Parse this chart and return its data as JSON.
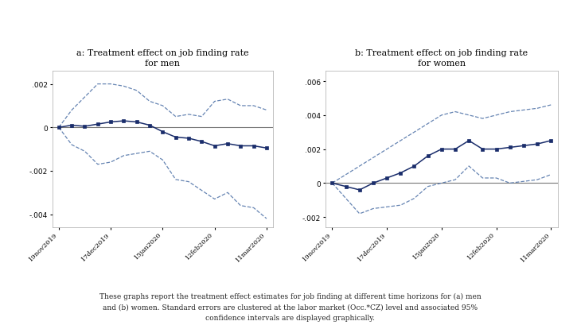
{
  "title_a": "a: Treatment effect on job finding rate\nfor men",
  "title_b": "b: Treatment effect on job finding rate\nfor women",
  "caption": "These graphs report the treatment effect estimates for job finding at different time horizons for (a) men\nand (b) women. Standard errors are clustered at the labor market (Occ.*CZ) level and associated 95%\nconfidence intervals are displayed graphically.",
  "x_labels": [
    "19nov2019",
    "17dec2019",
    "15jan2020",
    "12feb2020",
    "11mar2020"
  ],
  "x_tick_positions": [
    0,
    4,
    8,
    12,
    16
  ],
  "n_points": 17,
  "men_y": [
    0.0,
    0.0001,
    5e-05,
    0.00015,
    0.00025,
    0.0003,
    0.00025,
    0.0001,
    -0.0002,
    -0.00045,
    -0.0005,
    -0.00065,
    -0.00085,
    -0.00075,
    -0.00085,
    -0.00085,
    -0.00095
  ],
  "men_upper": [
    0.0,
    0.0008,
    0.0014,
    0.002,
    0.002,
    0.0019,
    0.0017,
    0.0012,
    0.001,
    0.0005,
    0.0006,
    0.0005,
    0.0012,
    0.0013,
    0.001,
    0.001,
    0.0008
  ],
  "men_lower": [
    0.0,
    -0.0008,
    -0.0011,
    -0.0017,
    -0.0016,
    -0.0013,
    -0.0012,
    -0.0011,
    -0.0015,
    -0.0024,
    -0.0025,
    -0.0029,
    -0.0033,
    -0.003,
    -0.0036,
    -0.0037,
    -0.0042
  ],
  "women_y": [
    0.0,
    -0.0002,
    -0.0004,
    0.0,
    0.0003,
    0.0006,
    0.001,
    0.0016,
    0.002,
    0.002,
    0.0025,
    0.002,
    0.002,
    0.0021,
    0.0022,
    0.0023,
    0.0025
  ],
  "women_upper": [
    0.0,
    0.0005,
    0.001,
    0.0015,
    0.002,
    0.0025,
    0.003,
    0.0035,
    0.004,
    0.0042,
    0.004,
    0.0038,
    0.004,
    0.0042,
    0.0043,
    0.0044,
    0.0046
  ],
  "women_lower": [
    0.0,
    -0.0009,
    -0.0018,
    -0.0015,
    -0.0014,
    -0.0013,
    -0.0009,
    -0.0002,
    0.0,
    0.0002,
    0.001,
    0.0003,
    0.0003,
    0.0,
    0.0001,
    0.0002,
    0.0005
  ],
  "line_color": "#1a2d6b",
  "ci_color": "#5577aa",
  "zero_line_color": "#777777",
  "plot_bg_color": "#ffffff",
  "fig_bg_color": "#ffffff",
  "ylim_men": [
    -0.0046,
    0.0026
  ],
  "ylim_women": [
    -0.0026,
    0.0066
  ],
  "yticks_men": [
    -0.004,
    -0.002,
    0.0,
    0.002
  ],
  "yticks_women": [
    -0.002,
    0.0,
    0.002,
    0.004,
    0.006
  ]
}
